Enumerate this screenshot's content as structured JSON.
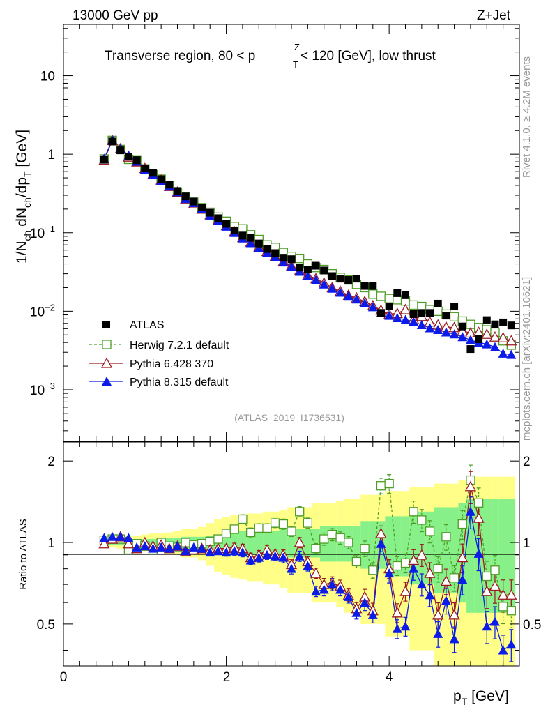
{
  "header": {
    "energy": "13000 GeV pp",
    "process": "Z+Jet",
    "title": "Transverse region, 80 < p",
    "title_sup": "Z",
    "title_sub": "T",
    "title_tail": " < 120 [GeV], low thrust",
    "side_rivet": "Rivet 4.1.0, ≥ 4.2M events",
    "side_mcplots": "mcplots.cern.ch [arXiv:2401.10621]",
    "analysis_id": "(ATLAS_2019_I1736531)"
  },
  "axes": {
    "ylabel_top": "1/N_ch dN_ch/dp_T [GeV]",
    "ylabel_bottom": "Ratio to ATLAS",
    "xlabel": "p_T [GeV]",
    "x_ticks": [
      "0",
      "2",
      "4"
    ],
    "y_top_ticks": [
      "10",
      "1",
      "10^-1",
      "10^-2",
      "10^-3"
    ],
    "y_bottom_ticks": [
      "2",
      "1",
      "0.5"
    ]
  },
  "legend": {
    "atlas": "ATLAS",
    "herwig": "Herwig 7.2.1 default",
    "pythia6": "Pythia 6.428 370",
    "pythia8": "Pythia 8.315 default"
  },
  "colors": {
    "atlas": "#000000",
    "herwig": "#4d9d25",
    "pythia6": "#9c1a22",
    "pythia8": "#0b1be8",
    "band_stat": "#88f088",
    "band_syst": "#ffff88"
  },
  "chart_data": [
    {
      "type": "scatter",
      "panel": "main",
      "yscale": "log",
      "xlim": [
        0,
        5.6
      ],
      "ylim": [
        0.00022,
        45
      ],
      "x": [
        0.5,
        0.6,
        0.7,
        0.8,
        0.9,
        1.0,
        1.1,
        1.2,
        1.3,
        1.4,
        1.5,
        1.6,
        1.7,
        1.8,
        1.9,
        2.0,
        2.1,
        2.2,
        2.3,
        2.4,
        2.5,
        2.6,
        2.7,
        2.8,
        2.9,
        3.0,
        3.1,
        3.2,
        3.3,
        3.4,
        3.5,
        3.6,
        3.7,
        3.8,
        3.9,
        4.0,
        4.1,
        4.2,
        4.3,
        4.4,
        4.5,
        4.6,
        4.7,
        4.8,
        4.9,
        5.0,
        5.1,
        5.2,
        5.3,
        5.4,
        5.5
      ],
      "series": [
        {
          "name": "ATLAS",
          "values": [
            0.85,
            1.45,
            1.12,
            0.93,
            0.84,
            0.66,
            0.58,
            0.48,
            0.41,
            0.34,
            0.29,
            0.25,
            0.21,
            0.18,
            0.153,
            0.13,
            0.107,
            0.092,
            0.086,
            0.073,
            0.062,
            0.055,
            0.048,
            0.046,
            0.036,
            0.034,
            0.038,
            0.033,
            0.028,
            0.026,
            0.025,
            0.026,
            0.021,
            0.021,
            0.0095,
            0.0115,
            0.017,
            0.016,
            0.0092,
            0.0095,
            0.0095,
            0.0125,
            0.0088,
            0.0115,
            0.0064,
            0.0033,
            0.0044,
            0.0077,
            0.0068,
            0.0072,
            0.0066
          ]
        },
        {
          "name": "Herwig 7.2.1 default",
          "values": [
            0.87,
            1.5,
            1.15,
            0.86,
            0.83,
            0.65,
            0.55,
            0.48,
            0.4,
            0.33,
            0.29,
            0.245,
            0.208,
            0.182,
            0.158,
            0.14,
            0.12,
            0.112,
            0.094,
            0.082,
            0.07,
            0.065,
            0.056,
            0.05,
            0.047,
            0.04,
            0.036,
            0.034,
            0.03,
            0.027,
            0.025,
            0.022,
            0.02,
            0.0165,
            0.0155,
            0.0145,
            0.014,
            0.0135,
            0.012,
            0.0115,
            0.0105,
            0.01,
            0.0092,
            0.0085,
            0.0075,
            0.0068,
            0.0062,
            0.0058,
            0.0054,
            0.0042,
            0.0037
          ]
        },
        {
          "name": "Pythia 6.428 370",
          "values": [
            0.84,
            1.5,
            1.18,
            0.92,
            0.8,
            0.66,
            0.56,
            0.47,
            0.39,
            0.33,
            0.27,
            0.235,
            0.2,
            0.17,
            0.145,
            0.123,
            0.103,
            0.087,
            0.076,
            0.066,
            0.058,
            0.05,
            0.043,
            0.038,
            0.033,
            0.029,
            0.026,
            0.023,
            0.02,
            0.018,
            0.016,
            0.0148,
            0.0133,
            0.0118,
            0.0103,
            0.0092,
            0.0094,
            0.0105,
            0.0079,
            0.0086,
            0.0073,
            0.0067,
            0.0063,
            0.0062,
            0.0056,
            0.0053,
            0.0054,
            0.0051,
            0.0047,
            0.0046,
            0.0042
          ]
        },
        {
          "name": "Pythia 8.315 default",
          "values": [
            0.88,
            1.52,
            1.18,
            0.97,
            0.81,
            0.64,
            0.55,
            0.46,
            0.39,
            0.33,
            0.27,
            0.24,
            0.2,
            0.165,
            0.142,
            0.12,
            0.1,
            0.085,
            0.074,
            0.064,
            0.056,
            0.049,
            0.042,
            0.037,
            0.032,
            0.028,
            0.025,
            0.022,
            0.0195,
            0.0173,
            0.0157,
            0.0142,
            0.0127,
            0.0113,
            0.0095,
            0.0088,
            0.0082,
            0.0078,
            0.0074,
            0.0067,
            0.0061,
            0.0058,
            0.0054,
            0.0051,
            0.0047,
            0.0043,
            0.004,
            0.0038,
            0.0035,
            0.0029,
            0.0028
          ]
        }
      ]
    },
    {
      "type": "scatter",
      "panel": "ratio",
      "yscale": "log",
      "xlim": [
        0,
        5.6
      ],
      "ylim": [
        0.35,
        2.35
      ],
      "ylabel": "Ratio to ATLAS",
      "xlabel": "p_T [GeV]",
      "x": [
        0.5,
        0.6,
        0.7,
        0.8,
        0.9,
        1.0,
        1.1,
        1.2,
        1.3,
        1.4,
        1.5,
        1.6,
        1.7,
        1.8,
        1.9,
        2.0,
        2.1,
        2.2,
        2.3,
        2.4,
        2.5,
        2.6,
        2.7,
        2.8,
        2.9,
        3.0,
        3.1,
        3.2,
        3.3,
        3.4,
        3.5,
        3.6,
        3.7,
        3.8,
        3.9,
        4.0,
        4.1,
        4.2,
        4.3,
        4.4,
        4.5,
        4.6,
        4.7,
        4.8,
        4.9,
        5.0,
        5.1,
        5.2,
        5.3,
        5.4,
        5.5
      ],
      "stat_band_halfwidth": [
        0.02,
        0.02,
        0.02,
        0.03,
        0.03,
        0.03,
        0.03,
        0.04,
        0.04,
        0.04,
        0.05,
        0.05,
        0.05,
        0.06,
        0.07,
        0.08,
        0.09,
        0.1,
        0.1,
        0.1,
        0.1,
        0.1,
        0.12,
        0.12,
        0.12,
        0.12,
        0.12,
        0.15,
        0.15,
        0.15,
        0.15,
        0.15,
        0.2,
        0.2,
        0.2,
        0.25,
        0.25,
        0.25,
        0.3,
        0.3,
        0.3,
        0.35,
        0.35,
        0.35,
        0.4,
        0.45,
        0.45,
        0.45,
        0.45,
        0.45,
        0.45
      ],
      "syst_band_halfwidth": [
        0.04,
        0.04,
        0.05,
        0.06,
        0.06,
        0.07,
        0.08,
        0.08,
        0.09,
        0.1,
        0.12,
        0.12,
        0.14,
        0.18,
        0.22,
        0.24,
        0.26,
        0.27,
        0.28,
        0.28,
        0.3,
        0.3,
        0.32,
        0.35,
        0.35,
        0.35,
        0.4,
        0.4,
        0.4,
        0.42,
        0.45,
        0.45,
        0.5,
        0.5,
        0.5,
        0.55,
        0.55,
        0.55,
        0.6,
        0.6,
        0.6,
        0.65,
        0.65,
        0.65,
        0.7,
        0.75,
        0.75,
        0.75,
        0.75,
        0.75,
        0.75
      ],
      "reference_line": 1,
      "series": [
        {
          "name": "Herwig 7.2.1 default",
          "values": [
            1.02,
            1.03,
            1.03,
            0.94,
            0.99,
            0.97,
            0.94,
            1.0,
            0.97,
            0.96,
            1.0,
            0.98,
            0.99,
            1.01,
            1.03,
            1.08,
            1.12,
            1.22,
            1.09,
            1.13,
            1.13,
            1.18,
            1.17,
            1.1,
            1.3,
            1.18,
            0.95,
            1.03,
            1.07,
            1.04,
            1.0,
            0.85,
            0.95,
            0.79,
            1.62,
            1.65,
            0.82,
            0.84,
            1.3,
            1.21,
            1.1,
            0.8,
            1.05,
            0.74,
            1.17,
            1.7,
            1.4,
            0.75,
            0.79,
            0.58,
            0.56
          ]
        },
        {
          "name": "Pythia 6.428 370",
          "values": [
            0.99,
            1.03,
            1.05,
            0.99,
            0.95,
            1.0,
            0.97,
            0.98,
            0.95,
            0.97,
            0.93,
            0.94,
            0.95,
            0.94,
            0.95,
            0.95,
            0.96,
            0.95,
            0.88,
            0.9,
            0.94,
            0.91,
            0.9,
            0.83,
            1.0,
            0.85,
            0.77,
            0.7,
            0.71,
            0.69,
            0.64,
            0.57,
            0.63,
            0.56,
            1.08,
            0.8,
            0.55,
            0.66,
            0.86,
            0.9,
            0.77,
            0.54,
            0.72,
            0.54,
            0.88,
            1.61,
            1.23,
            0.66,
            0.69,
            0.64,
            0.64
          ]
        },
        {
          "name": "Pythia 8.315 default",
          "values": [
            1.04,
            1.05,
            1.05,
            1.04,
            0.96,
            0.97,
            0.95,
            0.96,
            0.95,
            0.97,
            0.93,
            0.96,
            0.95,
            0.92,
            0.93,
            0.92,
            0.93,
            0.92,
            0.86,
            0.88,
            0.9,
            0.89,
            0.88,
            0.8,
            0.89,
            0.82,
            0.66,
            0.67,
            0.7,
            0.67,
            0.63,
            0.55,
            0.6,
            0.54,
            0.99,
            0.77,
            0.48,
            0.49,
            0.8,
            0.7,
            0.64,
            0.46,
            0.61,
            0.44,
            0.73,
            1.3,
            0.91,
            0.49,
            0.51,
            0.4,
            0.42
          ]
        }
      ]
    }
  ]
}
